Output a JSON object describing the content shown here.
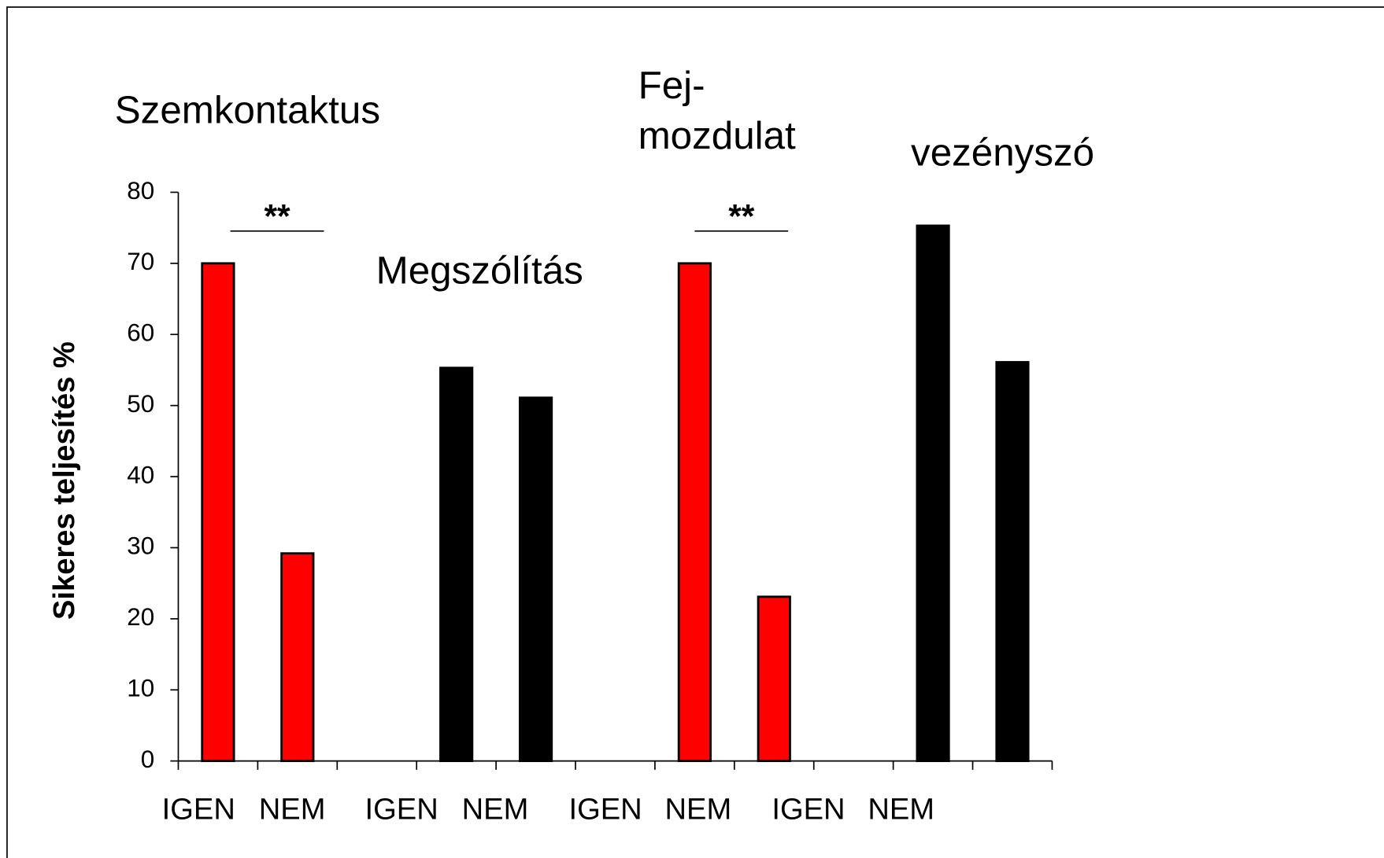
{
  "chart_data": {
    "type": "bar",
    "ylabel": "Sikeres teljesítés %",
    "categories": [
      "IGEN",
      "NEM",
      null,
      "IGEN",
      "NEM",
      null,
      "IGEN",
      "NEM",
      null,
      "IGEN",
      "NEM"
    ],
    "series": [
      {
        "color": "#ff0000",
        "values": [
          70,
          29.2,
          null,
          null,
          null,
          null,
          70,
          23.1,
          null,
          null,
          null
        ]
      },
      {
        "color": "#000000",
        "values": [
          null,
          null,
          null,
          55.3,
          51.1,
          null,
          null,
          null,
          null,
          75.3,
          56.1
        ]
      }
    ],
    "ylim": [
      0,
      80
    ],
    "yticks": [
      0,
      10,
      20,
      30,
      40,
      50,
      60,
      70,
      80
    ],
    "annotations": [
      "Szemkontaktus",
      "Megszólítás",
      "Fej-",
      "mozdulat",
      "vezényszó"
    ],
    "significance": [
      "**",
      "**"
    ]
  }
}
